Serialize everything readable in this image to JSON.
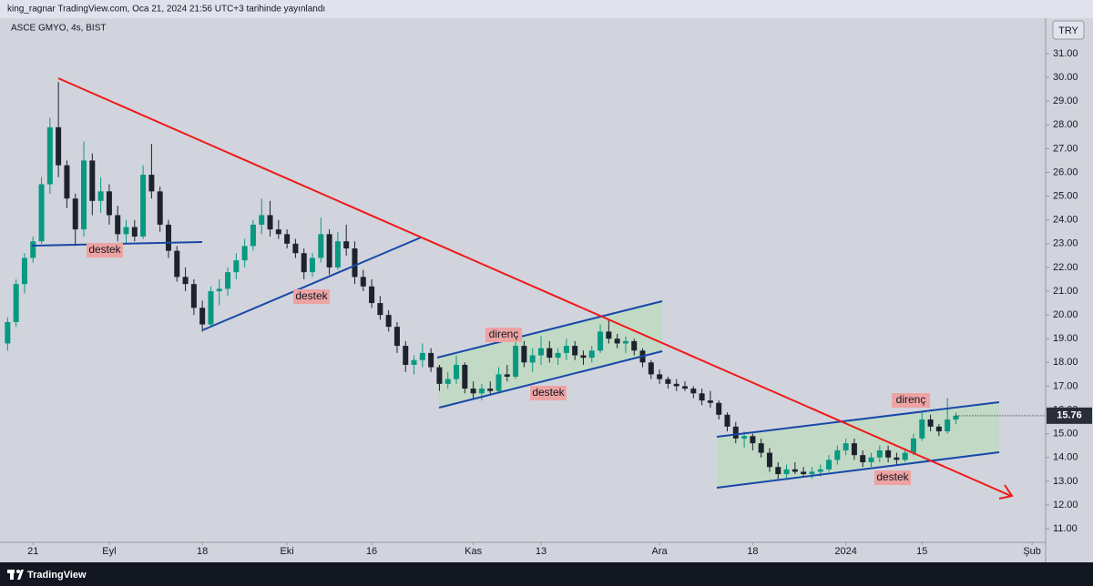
{
  "header": {
    "text": "king_ragnar TradingView.com, Oca 21, 2024 21:56 UTC+3 tarihinde yayınlandı"
  },
  "chart_data": {
    "type": "candlestick",
    "symbol": "ASCE GMYO, 4s, BIST",
    "currency": "TRY",
    "up_color": "#089981",
    "down_color": "#1e222d",
    "open": [
      18.8,
      19.7,
      21.3,
      22.4,
      23.1,
      25.5,
      27.9,
      26.3,
      24.9,
      23.6,
      26.5,
      24.8,
      25.2,
      24.2,
      23.4,
      23.7,
      23.3,
      25.9,
      25.2,
      23.8,
      22.7,
      21.6,
      21.3,
      20.3,
      19.6,
      21.0,
      21.1,
      21.8,
      22.3,
      22.9,
      23.8,
      24.2,
      23.6,
      23.4,
      23.0,
      22.6,
      21.8,
      22.4,
      23.4,
      22.0,
      23.1,
      22.8,
      21.6,
      21.2,
      20.5,
      20.0,
      19.5,
      18.7,
      17.9,
      18.1,
      18.4,
      17.8,
      17.1,
      17.3,
      17.9,
      16.9,
      16.7,
      16.9,
      16.8,
      17.5,
      17.4,
      18.7,
      18.0,
      18.3,
      18.6,
      18.2,
      18.4,
      18.7,
      18.3,
      18.2,
      18.5,
      19.3,
      19.0,
      18.8,
      18.9,
      18.5,
      18.0,
      17.5,
      17.3,
      17.1,
      17.0,
      16.9,
      16.7,
      16.4,
      16.3,
      15.8,
      15.3,
      14.8,
      14.9,
      14.6,
      14.2,
      13.6,
      13.3,
      13.5,
      13.4,
      13.3,
      13.4,
      13.5,
      13.9,
      14.3,
      14.6,
      14.1,
      13.8,
      14.0,
      14.3,
      14.0,
      13.9,
      14.2,
      14.8,
      15.6,
      15.3,
      15.1,
      15.6
    ],
    "high": [
      19.9,
      21.5,
      22.6,
      23.3,
      25.8,
      28.3,
      29.8,
      26.5,
      25.1,
      27.3,
      26.8,
      25.8,
      25.5,
      24.6,
      24.0,
      24.0,
      26.3,
      27.2,
      25.4,
      24.0,
      22.9,
      22.0,
      21.5,
      20.6,
      21.2,
      21.5,
      22.0,
      22.6,
      23.2,
      24.0,
      24.9,
      24.8,
      24.0,
      23.6,
      23.2,
      22.8,
      22.6,
      24.1,
      23.6,
      23.5,
      23.8,
      23.1,
      21.9,
      21.5,
      20.8,
      20.2,
      19.7,
      18.9,
      18.3,
      18.8,
      18.6,
      17.9,
      17.6,
      18.3,
      18.0,
      17.2,
      17.1,
      17.2,
      17.8,
      17.9,
      19.1,
      18.9,
      18.6,
      19.1,
      18.9,
      18.6,
      19.0,
      18.9,
      18.5,
      18.7,
      19.6,
      19.8,
      19.2,
      19.1,
      19.0,
      18.6,
      18.1,
      17.7,
      17.4,
      17.3,
      17.2,
      17.0,
      16.9,
      16.8,
      16.4,
      15.9,
      15.5,
      15.1,
      15.0,
      14.8,
      14.4,
      13.8,
      13.7,
      13.8,
      13.6,
      13.6,
      13.7,
      14.1,
      14.5,
      14.8,
      14.8,
      14.3,
      14.2,
      14.5,
      14.5,
      14.2,
      14.4,
      15.0,
      15.9,
      15.8,
      15.4,
      16.5,
      15.9
    ],
    "low": [
      18.5,
      19.5,
      20.9,
      22.2,
      23.0,
      25.1,
      25.8,
      24.5,
      22.9,
      23.3,
      24.2,
      24.3,
      23.8,
      23.1,
      23.0,
      23.1,
      23.2,
      24.9,
      23.5,
      22.4,
      21.4,
      21.0,
      20.0,
      19.3,
      19.5,
      20.4,
      20.8,
      21.5,
      22.0,
      22.7,
      23.4,
      23.3,
      23.2,
      22.8,
      22.4,
      21.5,
      21.6,
      22.2,
      21.7,
      21.9,
      22.5,
      21.3,
      21.0,
      20.3,
      19.8,
      19.3,
      18.4,
      17.6,
      17.5,
      17.8,
      17.6,
      16.8,
      16.9,
      17.1,
      16.7,
      16.5,
      16.4,
      16.6,
      16.7,
      17.2,
      17.3,
      17.8,
      17.6,
      17.9,
      18.0,
      17.9,
      18.1,
      18.1,
      17.9,
      18.0,
      18.4,
      18.8,
      18.6,
      18.4,
      18.3,
      17.8,
      17.3,
      17.1,
      16.9,
      16.8,
      16.8,
      16.5,
      16.2,
      16.1,
      15.6,
      15.1,
      14.6,
      14.4,
      14.3,
      14.0,
      13.4,
      13.1,
      13.1,
      13.3,
      13.2,
      13.1,
      13.2,
      13.4,
      13.7,
      14.1,
      13.9,
      13.6,
      13.6,
      13.8,
      13.8,
      13.7,
      13.8,
      14.1,
      14.7,
      15.1,
      14.9,
      15.0,
      15.4
    ],
    "close": [
      19.7,
      21.3,
      22.4,
      23.1,
      25.5,
      27.9,
      26.3,
      24.9,
      23.6,
      26.5,
      24.8,
      25.2,
      24.2,
      23.4,
      23.7,
      23.3,
      25.9,
      25.2,
      23.8,
      22.7,
      21.6,
      21.3,
      20.3,
      19.6,
      21.0,
      21.1,
      21.8,
      22.3,
      22.9,
      23.8,
      24.2,
      23.6,
      23.4,
      23.0,
      22.6,
      21.8,
      22.4,
      23.4,
      22.0,
      23.1,
      22.8,
      21.6,
      21.2,
      20.5,
      20.0,
      19.5,
      18.7,
      17.9,
      18.1,
      18.4,
      17.8,
      17.1,
      17.3,
      17.9,
      16.9,
      16.7,
      16.9,
      16.8,
      17.5,
      17.4,
      18.7,
      18.0,
      18.3,
      18.6,
      18.2,
      18.4,
      18.7,
      18.3,
      18.2,
      18.5,
      19.3,
      19.0,
      18.8,
      18.9,
      18.5,
      18.0,
      17.5,
      17.3,
      17.1,
      17.0,
      16.9,
      16.7,
      16.4,
      16.3,
      15.8,
      15.3,
      14.8,
      14.9,
      14.6,
      14.2,
      13.6,
      13.3,
      13.5,
      13.4,
      13.3,
      13.4,
      13.5,
      13.9,
      14.3,
      14.6,
      14.1,
      13.8,
      14.0,
      14.3,
      14.0,
      13.9,
      14.2,
      14.8,
      15.6,
      15.3,
      15.1,
      15.6,
      15.76
    ],
    "xlim": [
      -0.9,
      122.6
    ],
    "xticks": [
      {
        "value": 3,
        "label": "21"
      },
      {
        "value": 12,
        "label": "Eyl"
      },
      {
        "value": 23,
        "label": "18"
      },
      {
        "value": 33,
        "label": "Eki"
      },
      {
        "value": 43,
        "label": "16"
      },
      {
        "value": 55,
        "label": "Kas"
      },
      {
        "value": 63,
        "label": "13"
      },
      {
        "value": 77,
        "label": "Ara"
      },
      {
        "value": 88,
        "label": "18"
      },
      {
        "value": 99,
        "label": "2024"
      },
      {
        "value": 108,
        "label": "15"
      },
      {
        "value": 121,
        "label": "Şub"
      }
    ],
    "ylim": [
      10.43,
      32.49
    ],
    "yticks": [
      {
        "value": 11,
        "label": "11.00"
      },
      {
        "value": 12,
        "label": "12.00"
      },
      {
        "value": 13,
        "label": "13.00"
      },
      {
        "value": 14,
        "label": "14.00"
      },
      {
        "value": 15,
        "label": "15.00"
      },
      {
        "value": 16,
        "label": "16.00"
      },
      {
        "value": 17,
        "label": "17.00"
      },
      {
        "value": 18,
        "label": "18.00"
      },
      {
        "value": 19,
        "label": "19.00"
      },
      {
        "value": 20,
        "label": "20.00"
      },
      {
        "value": 21,
        "label": "21.00"
      },
      {
        "value": 22,
        "label": "22.00"
      },
      {
        "value": 23,
        "label": "23.00"
      },
      {
        "value": 24,
        "label": "24.00"
      },
      {
        "value": 25,
        "label": "25.00"
      },
      {
        "value": 26,
        "label": "26.00"
      },
      {
        "value": 27,
        "label": "27.00"
      },
      {
        "value": 28,
        "label": "28.00"
      },
      {
        "value": 29,
        "label": "29.00"
      },
      {
        "value": 30,
        "label": "30.00"
      },
      {
        "value": 31,
        "label": "31.00"
      }
    ],
    "annotations": [
      "destek",
      "destek",
      "direnç",
      "destek",
      "direnç",
      "destek"
    ]
  },
  "footer": {
    "brand": "TradingView"
  }
}
